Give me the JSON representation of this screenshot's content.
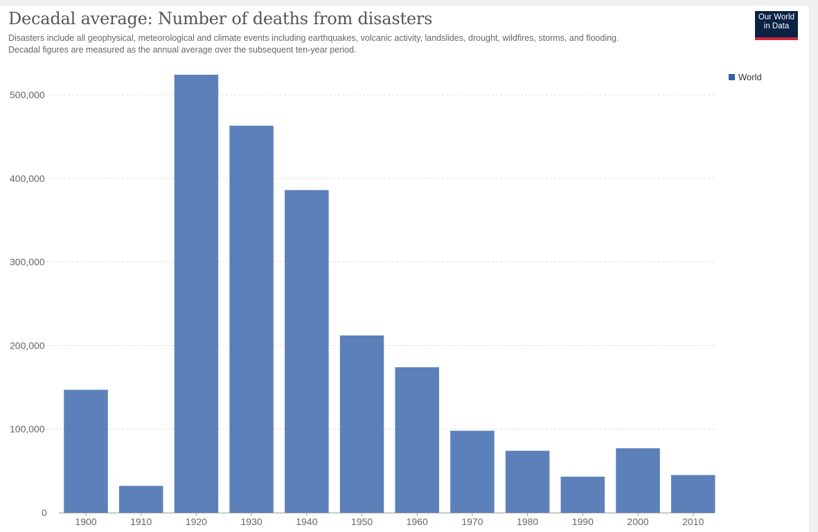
{
  "header": {
    "title": "Decadal average: Number of deaths from disasters",
    "subtitle_line1": "Disasters include all geophysical, meteorological and climate events including earthquakes, volcanic activity, landslides, drought, wildfires, storms, and flooding.",
    "subtitle_line2": "Decadal figures are measured as the annual average over the subsequent ten-year period."
  },
  "logo": {
    "line1": "Our World",
    "line2": "in Data",
    "background_color": "#0b2244",
    "accent_color": "#d0283a"
  },
  "chart_data": {
    "type": "bar",
    "categories": [
      "1900",
      "1910",
      "1920",
      "1930",
      "1940",
      "1950",
      "1960",
      "1970",
      "1980",
      "1990",
      "2000",
      "2010"
    ],
    "series": [
      {
        "name": "World",
        "color": "#3360a9",
        "values": [
          147000,
          32000,
          524000,
          463000,
          386000,
          212000,
          174000,
          98000,
          74000,
          43000,
          77000,
          45000
        ]
      }
    ],
    "y_ticks": [
      0,
      100000,
      200000,
      300000,
      400000,
      500000
    ],
    "y_tick_labels": [
      "0",
      "100,000",
      "200,000",
      "300,000",
      "400,000",
      "500,000"
    ],
    "ylim": [
      0,
      524000
    ],
    "grid": true,
    "legend_position": "top-right"
  }
}
